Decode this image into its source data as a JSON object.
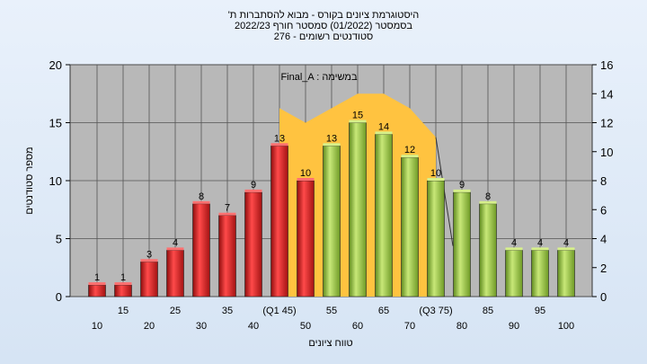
{
  "chart_data": {
    "type": "bar",
    "title_lines": [
      "היסטוגרמת ציונים בקורס - מבוא להסתברות ת'",
      "בסמסטר (01/2022) סמסטר חורף 2022/23",
      "סטודנטים רשומים - 276"
    ],
    "xlabel": "טווח ציונים",
    "ylabel": "מספר סטודנטים",
    "categories": [
      "10",
      "15",
      "20",
      "25",
      "30",
      "35",
      "40",
      "(Q1 45)",
      "50",
      "55",
      "60",
      "65",
      "70",
      "(Q3 75)",
      "80",
      "85",
      "90",
      "95",
      "100"
    ],
    "values": [
      1,
      1,
      3,
      4,
      8,
      7,
      9,
      13,
      10,
      13,
      15,
      14,
      12,
      10,
      9,
      8,
      4,
      4,
      4
    ],
    "bar_colors": [
      "red",
      "red",
      "red",
      "red",
      "red",
      "red",
      "red",
      "red",
      "red",
      "green",
      "green",
      "green",
      "green",
      "green",
      "green",
      "green",
      "green",
      "green",
      "green"
    ],
    "ylim_left": [
      0,
      20
    ],
    "yticks_left": [
      0,
      5,
      10,
      15,
      20
    ],
    "ylim_right": [
      0,
      16
    ],
    "yticks_right": [
      0,
      2,
      4,
      6,
      8,
      10,
      12,
      14,
      16
    ],
    "area_series": {
      "label": "Final_A : במשימה",
      "x_index": [
        7,
        8,
        9,
        10,
        11,
        12,
        13
      ],
      "values": [
        13,
        12,
        13,
        14,
        14,
        13,
        11
      ]
    },
    "grid": true,
    "colors": {
      "red_bar": "#d42020",
      "green_bar": "#8cba3a",
      "area": "#ffc340",
      "plot_bg": "#b8b8b8"
    }
  }
}
